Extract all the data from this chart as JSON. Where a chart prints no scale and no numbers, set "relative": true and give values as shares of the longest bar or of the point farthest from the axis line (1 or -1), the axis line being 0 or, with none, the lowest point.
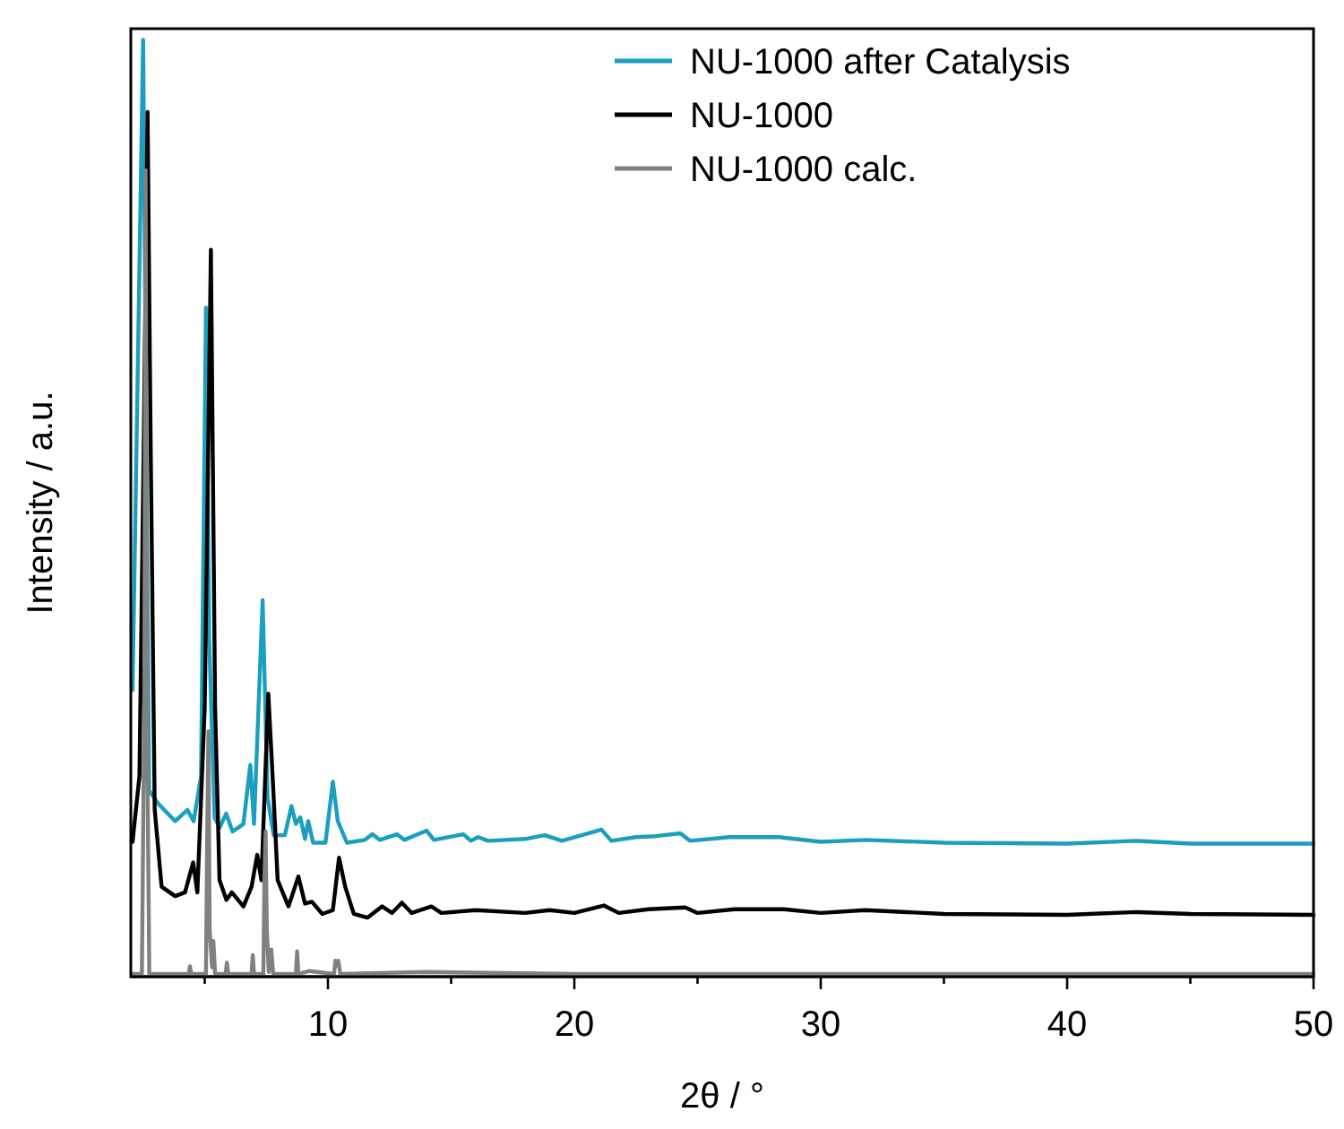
{
  "chart_data": {
    "type": "line",
    "xlabel": "2θ / °",
    "ylabel": "Intensity / a.u.",
    "relative": true,
    "legend": "top right",
    "line_style": "solid",
    "marker": "none",
    "xlim": [
      2,
      50
    ],
    "xticks": [
      {
        "value": 5,
        "label": null
      },
      10,
      {
        "value": 15,
        "label": null
      },
      20,
      {
        "value": 25,
        "label": null
      },
      30,
      {
        "value": 35,
        "label": null
      },
      40,
      {
        "value": 45,
        "label": null
      },
      50
    ],
    "series": [
      {
        "name": "NU-1000 after Catalysis",
        "color": "#1a9fc0",
        "x": [
          2.07,
          2.5,
          2.74,
          3.1,
          3.8,
          4.3,
          4.55,
          4.85,
          5.05,
          5.18,
          5.4,
          5.6,
          5.87,
          6.13,
          6.57,
          6.85,
          7.0,
          7.35,
          7.55,
          7.8,
          8.25,
          8.52,
          8.7,
          8.88,
          9.07,
          9.2,
          9.4,
          9.9,
          10.2,
          10.4,
          10.77,
          11.5,
          11.8,
          12.1,
          12.8,
          13.1,
          14.0,
          14.3,
          15.5,
          15.8,
          16.1,
          16.5,
          18.0,
          18.8,
          19.5,
          21.1,
          21.5,
          22.5,
          23.3,
          24.3,
          24.7,
          26.3,
          28.3,
          30,
          31.8,
          35,
          40,
          42.8,
          45,
          50
        ],
        "values": [
          0.306,
          1.0,
          0.199,
          0.185,
          0.166,
          0.178,
          0.166,
          0.214,
          0.714,
          0.361,
          0.17,
          0.159,
          0.174,
          0.155,
          0.163,
          0.226,
          0.163,
          0.402,
          0.191,
          0.151,
          0.151,
          0.182,
          0.163,
          0.17,
          0.147,
          0.166,
          0.143,
          0.143,
          0.208,
          0.166,
          0.143,
          0.146,
          0.152,
          0.146,
          0.152,
          0.146,
          0.156,
          0.146,
          0.152,
          0.145,
          0.149,
          0.145,
          0.147,
          0.151,
          0.145,
          0.157,
          0.145,
          0.149,
          0.15,
          0.153,
          0.145,
          0.149,
          0.149,
          0.144,
          0.146,
          0.143,
          0.142,
          0.145,
          0.142,
          0.142
        ]
      },
      {
        "name": "NU-1000",
        "color": "#000000",
        "x": [
          2.07,
          2.35,
          2.53,
          2.68,
          2.8,
          2.97,
          3.25,
          3.8,
          4.2,
          4.53,
          4.7,
          5.0,
          5.25,
          5.42,
          5.6,
          5.88,
          6.1,
          6.57,
          6.9,
          7.13,
          7.3,
          7.58,
          7.77,
          7.96,
          8.4,
          8.8,
          9.07,
          9.35,
          9.77,
          10.2,
          10.45,
          10.7,
          11.05,
          11.6,
          12.2,
          12.6,
          13.0,
          13.4,
          14.2,
          14.6,
          16,
          18,
          19,
          20,
          21.2,
          21.8,
          23,
          24.5,
          25,
          26.5,
          28.5,
          30,
          31.8,
          35,
          40,
          42.8,
          45,
          50
        ],
        "values": [
          0.144,
          0.214,
          0.581,
          0.923,
          0.581,
          0.178,
          0.096,
          0.086,
          0.09,
          0.122,
          0.09,
          0.288,
          0.776,
          0.288,
          0.103,
          0.082,
          0.09,
          0.075,
          0.096,
          0.13,
          0.103,
          0.302,
          0.206,
          0.103,
          0.075,
          0.107,
          0.078,
          0.08,
          0.067,
          0.071,
          0.127,
          0.096,
          0.067,
          0.063,
          0.075,
          0.068,
          0.079,
          0.068,
          0.075,
          0.068,
          0.071,
          0.068,
          0.071,
          0.068,
          0.076,
          0.068,
          0.072,
          0.074,
          0.068,
          0.072,
          0.072,
          0.068,
          0.071,
          0.067,
          0.066,
          0.069,
          0.067,
          0.066
        ]
      },
      {
        "name": "NU-1000 calc.",
        "color": "#808080",
        "x": [
          2.07,
          2.45,
          2.55,
          2.6,
          2.65,
          2.75,
          4.35,
          4.4,
          4.45,
          5.05,
          5.1,
          5.15,
          5.2,
          5.3,
          5.35,
          5.42,
          5.85,
          5.9,
          5.95,
          6.9,
          6.95,
          7.0,
          7.38,
          7.42,
          7.47,
          7.52,
          7.6,
          7.7,
          7.78,
          8.7,
          8.75,
          8.8,
          9.25,
          10.25,
          10.3,
          10.38,
          10.42,
          10.5,
          14,
          20,
          50
        ],
        "values": [
          0.003,
          0.003,
          0.3,
          0.861,
          0.3,
          0.003,
          0.003,
          0.011,
          0.003,
          0.003,
          0.15,
          0.262,
          0.05,
          0.01,
          0.038,
          0.003,
          0.003,
          0.015,
          0.003,
          0.003,
          0.023,
          0.003,
          0.003,
          0.1,
          0.155,
          0.05,
          0.005,
          0.029,
          0.003,
          0.003,
          0.027,
          0.003,
          0.006,
          0.003,
          0.017,
          0.012,
          0.017,
          0.003,
          0.005,
          0.003,
          0.003
        ]
      }
    ]
  }
}
